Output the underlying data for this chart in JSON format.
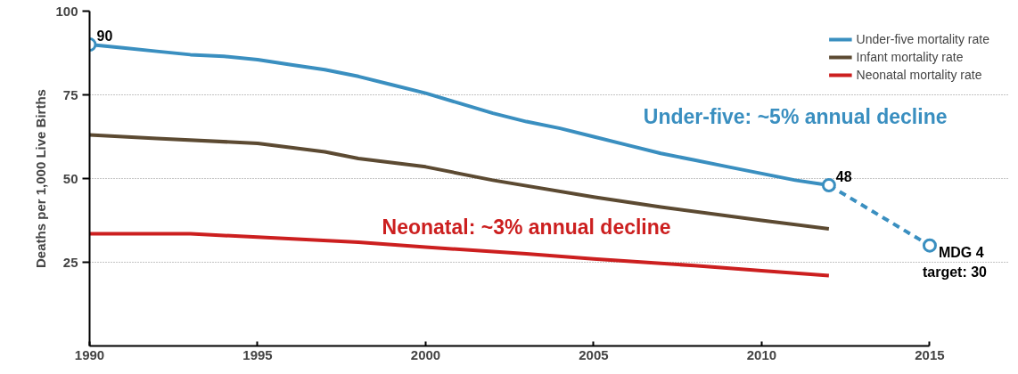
{
  "chart_data": {
    "type": "line",
    "ylabel": "Deaths per 1,000 Live Births",
    "xlim": [
      1990,
      2015
    ],
    "ylim": [
      0,
      100
    ],
    "xticks": [
      1990,
      1995,
      2000,
      2005,
      2010,
      2015
    ],
    "yticks": [
      25,
      50,
      75,
      100
    ],
    "grid": "y",
    "legend": "top right",
    "line_style": "solid",
    "marker": "none",
    "series": [
      {
        "name": "Under-five mortality rate",
        "color": "#3a8fc0",
        "x": [
          1990,
          1991,
          1992,
          1993,
          1994,
          1995,
          1996,
          1997,
          1998,
          1999,
          2000,
          2001,
          2002,
          2003,
          2004,
          2005,
          2006,
          2007,
          2008,
          2009,
          2010,
          2011,
          2012
        ],
        "values": [
          90,
          89,
          88,
          87,
          86.5,
          85.5,
          84,
          82.5,
          80.5,
          78,
          75.5,
          72.5,
          69.5,
          67,
          65,
          62.5,
          60,
          57.5,
          55.5,
          53.5,
          51.5,
          49.5,
          48
        ]
      },
      {
        "name": "Infant mortality rate",
        "color": "#5c4a32",
        "x": [
          1990,
          1992,
          1995,
          1997,
          1998,
          2000,
          2002,
          2005,
          2007,
          2010,
          2012
        ],
        "values": [
          63,
          62,
          60.5,
          58,
          56,
          53.5,
          49.5,
          44.5,
          41.5,
          37.5,
          35
        ]
      },
      {
        "name": "Neonatal mortality rate",
        "color": "#cc1f1f",
        "x": [
          1990,
          1993,
          1995,
          1998,
          2000,
          2003,
          2005,
          2008,
          2010,
          2012
        ],
        "values": [
          33.5,
          33.5,
          32.5,
          31,
          29.5,
          27.5,
          26,
          24,
          22.5,
          21
        ]
      },
      {
        "color": "#3a8fc0",
        "line_style": "dashed",
        "x": [
          2012,
          2015
        ],
        "values": [
          48,
          30
        ]
      },
      {
        "type": "scatter",
        "marker": "circle",
        "color": "#3a8fc0",
        "x": [
          1990,
          2012,
          2015
        ],
        "values": [
          90,
          48,
          30
        ]
      }
    ],
    "annotations": [
      {
        "text": "90",
        "x": 1990,
        "y": 90
      },
      {
        "text": "48",
        "x": 2012,
        "y": 48
      },
      {
        "text": "MDG 4",
        "x": 2015,
        "y": 30
      },
      {
        "text": "target: 30",
        "x": 2015,
        "y": 30
      },
      {
        "text": "Under-five: ~5% annual decline",
        "x": 2011,
        "y": 49.5
      },
      {
        "text": "Neonatal: ~3% annual decline",
        "x": 2003,
        "y": 27.5
      }
    ]
  }
}
